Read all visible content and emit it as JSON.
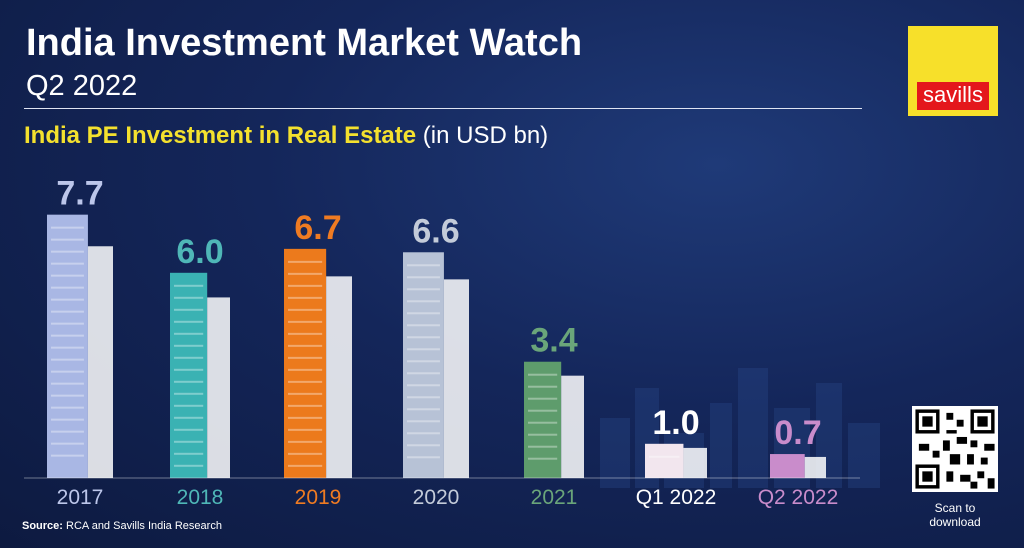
{
  "header": {
    "title": "India Investment Market Watch",
    "subtitle": "Q2 2022"
  },
  "logo": {
    "text": "savills",
    "bg_color": "#f7e02a",
    "box_color": "#e4171c"
  },
  "chart_heading": {
    "title": "India PE Investment in Real Estate",
    "unit": "(in USD bn)"
  },
  "chart_data": {
    "type": "bar",
    "title": "India PE Investment in Real Estate",
    "unit": "(in USD bn)",
    "categories": [
      "2017",
      "2018",
      "2019",
      "2020",
      "2021",
      "Q1 2022",
      "Q2 2022"
    ],
    "values": [
      7.7,
      6.0,
      6.7,
      6.6,
      3.4,
      1.0,
      0.7
    ],
    "value_labels": [
      "7.7",
      "6.0",
      "6.7",
      "6.6",
      "3.4",
      "1.0",
      "0.7"
    ],
    "colors": [
      "#a9b7e4",
      "#3ab2b3",
      "#ec7a1c",
      "#b7c2d6",
      "#5e9c6c",
      "#f2e6ee",
      "#c98ccb"
    ],
    "label_colors": [
      "#bcc6ea",
      "#4fb7b7",
      "#ef7b22",
      "#c3cbd9",
      "#6aa57a",
      "#ffffff",
      "#c98ccb"
    ]
  },
  "source": {
    "label": "Source:",
    "text": " RCA and Savills India Research"
  },
  "qr": {
    "caption_line1": "Scan to",
    "caption_line2": "download"
  }
}
